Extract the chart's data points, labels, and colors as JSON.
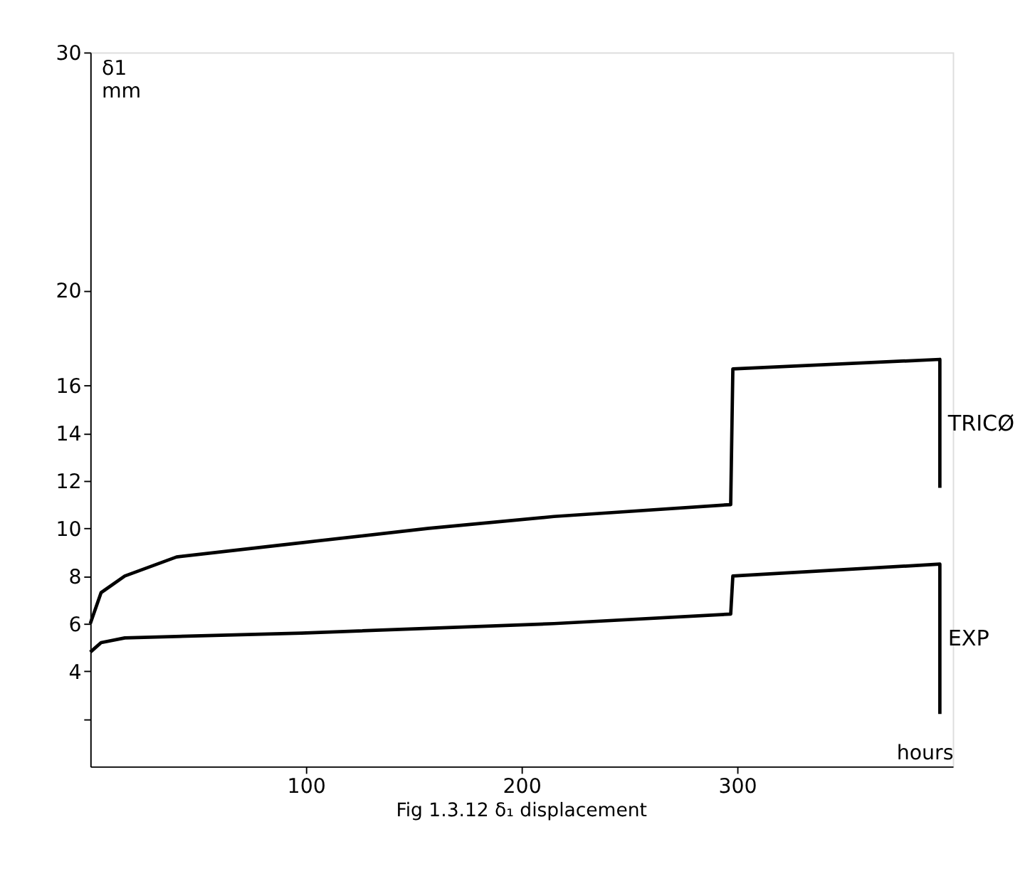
{
  "chart_data": {
    "type": "line",
    "title": "Fig 1.3.12  δ₁ displacement",
    "xlabel": "hours",
    "ylabel": "δ1\nmm",
    "xlim": [
      0,
      400
    ],
    "xticks": [
      100,
      200,
      300
    ],
    "ylim": [
      0,
      30
    ],
    "yticks": [
      {
        "value": 2,
        "label": null
      },
      4,
      6,
      8,
      10,
      12,
      14,
      16,
      20,
      30
    ],
    "grid": false,
    "marker": "none",
    "line_style": "solid",
    "series": [
      {
        "name": "TRICØ",
        "color": "#000000",
        "x": [
          0,
          5,
          16,
          40,
          98,
          157,
          215,
          297,
          298,
          394,
          394
        ],
        "values": [
          6.0,
          7.3,
          8.0,
          8.8,
          9.4,
          10.0,
          10.5,
          11.0,
          16.7,
          17.1,
          11.7
        ]
      },
      {
        "name": "EXP",
        "color": "#000000",
        "x": [
          0,
          5,
          16,
          98,
          215,
          297,
          298,
          394,
          394
        ],
        "values": [
          4.8,
          5.2,
          5.4,
          5.6,
          6.0,
          6.4,
          8.0,
          8.5,
          2.2
        ]
      }
    ]
  }
}
